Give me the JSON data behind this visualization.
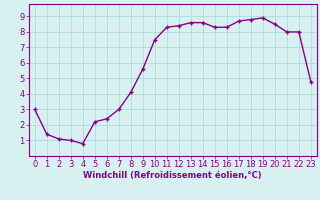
{
  "x": [
    0,
    1,
    2,
    3,
    4,
    5,
    6,
    7,
    8,
    9,
    10,
    11,
    12,
    13,
    14,
    15,
    16,
    17,
    18,
    19,
    20,
    21,
    22,
    23
  ],
  "y": [
    3.0,
    1.4,
    1.1,
    1.0,
    0.8,
    2.2,
    2.4,
    3.0,
    4.1,
    5.6,
    7.5,
    8.3,
    8.4,
    8.6,
    8.6,
    8.3,
    8.3,
    8.7,
    8.8,
    8.9,
    8.5,
    8.0,
    8.0,
    4.8
  ],
  "line_color": "#880088",
  "marker": "+",
  "marker_size": 3.5,
  "marker_lw": 1.0,
  "bg_color": "#d8f0f0",
  "grid_color": "#b0dede",
  "spine_color": "#880088",
  "tick_color": "#880088",
  "xlabel": "Windchill (Refroidissement éolien,°C)",
  "xlim": [
    -0.5,
    23.5
  ],
  "ylim": [
    0,
    9.8
  ],
  "yticks": [
    1,
    2,
    3,
    4,
    5,
    6,
    7,
    8,
    9
  ],
  "xticks": [
    0,
    1,
    2,
    3,
    4,
    5,
    6,
    7,
    8,
    9,
    10,
    11,
    12,
    13,
    14,
    15,
    16,
    17,
    18,
    19,
    20,
    21,
    22,
    23
  ],
  "xlabel_fontsize": 6.0,
  "tick_fontsize": 6.0,
  "linewidth": 1.0
}
